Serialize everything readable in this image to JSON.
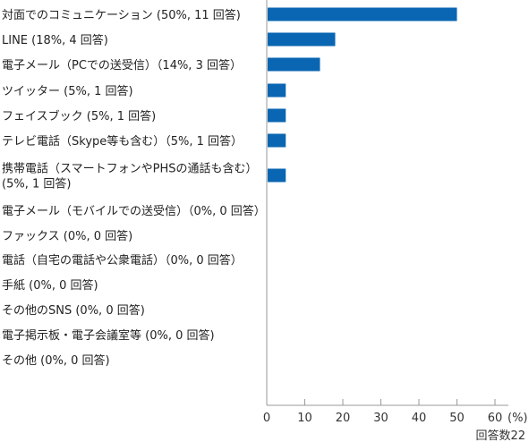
{
  "chart_data": {
    "type": "bar",
    "orientation": "horizontal",
    "categories": [
      [
        "対面でのコミュニケーション (50%, 11 回答)"
      ],
      [
        "LINE (18%, 4 回答)"
      ],
      [
        "電子メール（PCでの送受信）（14%, 3 回答）"
      ],
      [
        "ツイッター (5%, 1 回答)"
      ],
      [
        "フェイスブック (5%, 1 回答)"
      ],
      [
        "テレビ電話（Skype等も含む）（5%, 1 回答）"
      ],
      [
        "携帯電話（スマートフォンやPHSの通話も含む）",
        "(5%, 1 回答)"
      ],
      [
        "電子メール（モバイルでの送受信）（0%, 0 回答）"
      ],
      [
        "ファックス (0%, 0 回答)"
      ],
      [
        "電話（自宅の電話や公衆電話）（0%, 0 回答）"
      ],
      [
        "手紙 (0%, 0 回答)"
      ],
      [
        "その他のSNS (0%, 0 回答)"
      ],
      [
        "電子掲示板・電子会議室等 (0%, 0 回答)"
      ],
      [
        "その他 (0%, 0 回答)"
      ]
    ],
    "values": [
      50,
      18,
      14,
      5,
      5,
      5,
      5,
      0,
      0,
      0,
      0,
      0,
      0,
      0
    ],
    "xlim": [
      0,
      60
    ],
    "xticks": [
      "0",
      "10",
      "20",
      "30",
      "40",
      "50",
      "60"
    ],
    "unit_label": "(%)",
    "footnote": "回答数22",
    "bar_color": "#0a66b2",
    "axis_color": "#9a9a9a",
    "grid": false
  }
}
